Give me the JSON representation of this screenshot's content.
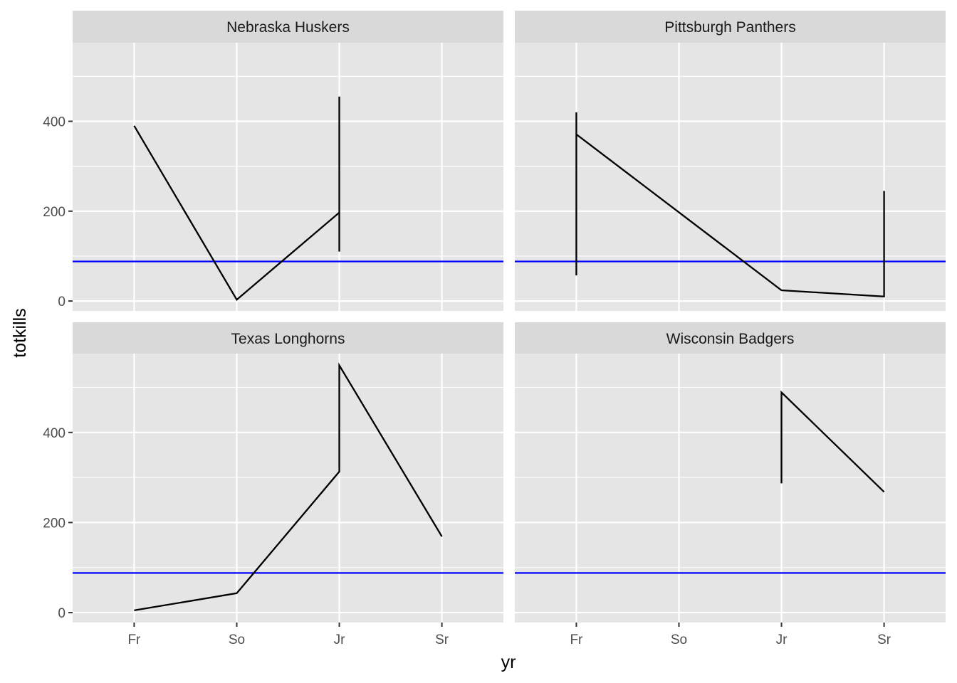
{
  "chart_data": {
    "type": "line",
    "facet_layout": "2x2 grid",
    "xlabel": "yr",
    "ylabel": "totkills",
    "x_categories": [
      "Fr",
      "So",
      "Jr",
      "Sr"
    ],
    "ylim": [
      -22,
      575
    ],
    "y_ticks": [
      0,
      200,
      400
    ],
    "grid": true,
    "reference_line": {
      "y": 88,
      "color": "#0000FF"
    },
    "line_color": "#000000",
    "panel_background": "#E5E5E5",
    "strip_background": "#D9D9D9",
    "grid_color": "#FFFFFF",
    "facets": [
      {
        "title": "Nebraska Huskers",
        "points": [
          {
            "x": "Fr",
            "y": 390
          },
          {
            "x": "So",
            "y": 3
          },
          {
            "x": "Jr",
            "y": 197
          },
          {
            "x": "Jr",
            "y": 455
          },
          {
            "x": "Jr",
            "y": 110
          }
        ]
      },
      {
        "title": "Pittsburgh Panthers",
        "points": [
          {
            "x": "Fr",
            "y": 57
          },
          {
            "x": "Fr",
            "y": 420
          },
          {
            "x": "Fr",
            "y": 371
          },
          {
            "x": "Jr",
            "y": 24
          },
          {
            "x": "Sr",
            "y": 10
          },
          {
            "x": "Sr",
            "y": 245
          }
        ]
      },
      {
        "title": "Texas Longhorns",
        "points": [
          {
            "x": "Fr",
            "y": 5
          },
          {
            "x": "So",
            "y": 43
          },
          {
            "x": "Jr",
            "y": 313
          },
          {
            "x": "Jr",
            "y": 549
          },
          {
            "x": "Sr",
            "y": 169
          }
        ]
      },
      {
        "title": "Wisconsin Badgers",
        "points": [
          {
            "x": "Jr",
            "y": 287
          },
          {
            "x": "Jr",
            "y": 489
          },
          {
            "x": "Sr",
            "y": 268
          }
        ]
      }
    ]
  }
}
